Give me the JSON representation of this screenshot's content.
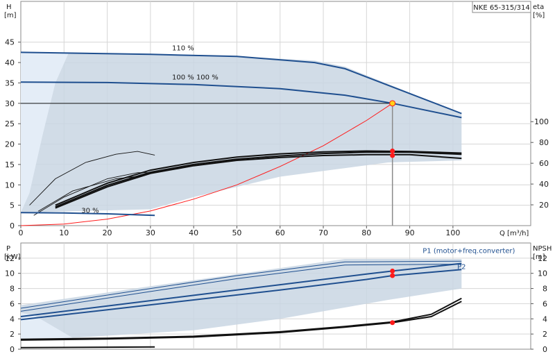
{
  "colors": {
    "blue": "#1f4f8f",
    "band": "#c9d6e3",
    "band_light": "#e4edf7",
    "grid": "#d6d6d6",
    "black": "#111111",
    "red": "#ff1a1a",
    "duty_point_fill": "#ffd21a"
  },
  "chart_data": [
    {
      "type": "line",
      "title": "NKE 65-315/314",
      "xlabel": "Q [m³/h]",
      "ylabel_left": [
        "H",
        "[m]"
      ],
      "ylabel_right": [
        "eta",
        "[%]"
      ],
      "x_ticks": [
        0,
        10,
        20,
        30,
        40,
        50,
        60,
        70,
        80,
        90,
        100
      ],
      "y_ticks_left": [
        0,
        5,
        10,
        15,
        20,
        25,
        30,
        35,
        40,
        45
      ],
      "y_ticks_right": [
        20,
        40,
        60,
        80,
        100
      ],
      "xlim": [
        0,
        118
      ],
      "ylim_left": [
        0,
        55
      ],
      "grid": true,
      "duty_point": {
        "q": 86,
        "h": 30
      },
      "region": {
        "upper": [
          [
            0,
            42.5
          ],
          [
            12,
            42.3
          ],
          [
            30,
            42
          ],
          [
            50,
            41.5
          ],
          [
            68,
            40.5
          ],
          [
            75,
            39
          ],
          [
            102,
            27.5
          ]
        ],
        "lower": [
          [
            102,
            16
          ],
          [
            85,
            15.5
          ],
          [
            60,
            12
          ],
          [
            40,
            7
          ],
          [
            30,
            4
          ],
          [
            0,
            3.2
          ]
        ]
      },
      "light_region": [
        [
          0,
          42.5
        ],
        [
          11,
          42.2
        ],
        [
          8,
          35
        ],
        [
          5,
          22
        ],
        [
          2,
          8
        ],
        [
          0,
          3.2
        ]
      ],
      "series": [
        {
          "name": "110 %",
          "label": "110 %",
          "label_at": [
            35,
            42.5
          ],
          "points": [
            [
              0,
              42.5
            ],
            [
              30,
              42
            ],
            [
              50,
              41.5
            ],
            [
              68,
              40
            ],
            [
              75,
              38.5
            ],
            [
              102,
              27.5
            ]
          ]
        },
        {
          "name": "100 %",
          "label": "100 %    100 %",
          "label_at": [
            35,
            35.3
          ],
          "points": [
            [
              0,
              35.2
            ],
            [
              20,
              35.1
            ],
            [
              40,
              34.6
            ],
            [
              60,
              33.6
            ],
            [
              75,
              32
            ],
            [
              86,
              30
            ],
            [
              102,
              26.5
            ]
          ]
        },
        {
          "name": "30 %",
          "label": "30 %",
          "label_at": [
            14,
            2.6
          ],
          "points": [
            [
              0,
              3.2
            ],
            [
              10,
              3.1
            ],
            [
              20,
              2.9
            ],
            [
              31,
              2.5
            ]
          ]
        }
      ],
      "system_curve": [
        [
          0,
          0
        ],
        [
          10,
          0.4
        ],
        [
          20,
          1.6
        ],
        [
          30,
          3.6
        ],
        [
          40,
          6.5
        ],
        [
          50,
          10
        ],
        [
          60,
          14.5
        ],
        [
          70,
          19.6
        ],
        [
          80,
          25.8
        ],
        [
          86,
          30
        ]
      ],
      "duty_vertical": {
        "q": 86,
        "h_top": 30
      },
      "efficiency_curves": [
        {
          "points": [
            [
              8,
              4.3
            ],
            [
              20,
              9.5
            ],
            [
              30,
              12.8
            ],
            [
              40,
              14.7
            ],
            [
              50,
              16
            ],
            [
              60,
              16.7
            ],
            [
              70,
              17.2
            ],
            [
              80,
              17.4
            ],
            [
              90,
              17.4
            ],
            [
              102,
              16.5
            ]
          ]
        },
        {
          "points": [
            [
              8,
              4.6
            ],
            [
              20,
              9.9
            ],
            [
              30,
              13.1
            ],
            [
              40,
              15
            ],
            [
              50,
              16.3
            ],
            [
              60,
              17.1
            ],
            [
              70,
              17.7
            ],
            [
              80,
              18
            ],
            [
              90,
              18
            ],
            [
              102,
              17.5
            ]
          ]
        },
        {
          "points": [
            [
              8,
              5
            ],
            [
              20,
              10.4
            ],
            [
              30,
              13.6
            ],
            [
              40,
              15.5
            ],
            [
              50,
              16.8
            ],
            [
              60,
              17.6
            ],
            [
              70,
              18.1
            ],
            [
              80,
              18.3
            ],
            [
              90,
              18.2
            ],
            [
              102,
              17.8
            ]
          ]
        },
        {
          "points": [
            [
              3,
              2.5
            ],
            [
              10,
              7
            ],
            [
              20,
              11.5
            ],
            [
              27,
              13
            ],
            [
              31,
              13
            ]
          ],
          "thin": true
        },
        {
          "points": [
            [
              2,
              5
            ],
            [
              8,
              11.5
            ],
            [
              15,
              15.5
            ],
            [
              22,
              17.5
            ],
            [
              27,
              18.2
            ],
            [
              31,
              17.3
            ]
          ],
          "thin": true
        },
        {
          "points": [
            [
              4,
              3.5
            ],
            [
              12,
              8.5
            ],
            [
              22,
              11.5
            ],
            [
              28,
              12.2
            ]
          ],
          "thin": true
        }
      ],
      "markers": [
        [
          86,
          17.2
        ],
        [
          86,
          18.3
        ]
      ]
    },
    {
      "type": "line",
      "xlabel": "",
      "ylabel_left": [
        "P",
        "[kW]"
      ],
      "ylabel_right": [
        "NPSH",
        "[m]"
      ],
      "y_ticks_left": [
        0,
        2,
        4,
        6,
        8,
        10,
        12
      ],
      "y_ticks_right": [
        0,
        2,
        4,
        6,
        8,
        10,
        12
      ],
      "xlim": [
        0,
        118
      ],
      "ylim_left": [
        0,
        14
      ],
      "grid": true,
      "region": {
        "upper": [
          [
            0,
            5.8
          ],
          [
            30,
            8.3
          ],
          [
            50,
            9.9
          ],
          [
            75,
            11.9
          ],
          [
            102,
            11.9
          ]
        ],
        "lower": [
          [
            102,
            8
          ],
          [
            85,
            6.5
          ],
          [
            60,
            4
          ],
          [
            40,
            2.5
          ],
          [
            12,
            1.5
          ],
          [
            0,
            1.4
          ]
        ]
      },
      "light_region": [
        [
          0,
          1.4
        ],
        [
          12,
          1.5
        ],
        [
          6,
          3.5
        ],
        [
          3,
          4.5
        ],
        [
          0,
          4.8
        ]
      ],
      "series": [
        {
          "name": "P1 (motor+freq.converter)",
          "label": "P1 (motor+freq.converter)",
          "label_at": [
            93,
            12.4
          ],
          "points": [
            [
              0,
              4.3
            ],
            [
              20,
              5.7
            ],
            [
              40,
              7.1
            ],
            [
              60,
              8.5
            ],
            [
              80,
              9.9
            ],
            [
              86,
              10.3
            ],
            [
              102,
              11.3
            ]
          ]
        },
        {
          "name": "P2",
          "label": "P2",
          "label_at": [
            101,
            10.3
          ],
          "points": [
            [
              0,
              3.9
            ],
            [
              20,
              5.2
            ],
            [
              40,
              6.5
            ],
            [
              60,
              7.8
            ],
            [
              80,
              9.2
            ],
            [
              86,
              9.7
            ],
            [
              102,
              10.5
            ]
          ]
        },
        {
          "name": "upper envelope",
          "points": [
            [
              0,
              5.4
            ],
            [
              30,
              8
            ],
            [
              50,
              9.7
            ],
            [
              75,
              11.5
            ],
            [
              102,
              11.6
            ]
          ],
          "thin": true
        },
        {
          "name": "upper envelope 2",
          "points": [
            [
              0,
              5
            ],
            [
              30,
              7.6
            ],
            [
              50,
              9.3
            ],
            [
              75,
              11.1
            ],
            [
              102,
              11.2
            ]
          ],
          "thin": true
        }
      ],
      "npsh_curves": [
        {
          "points": [
            [
              0,
              1.2
            ],
            [
              20,
              1.35
            ],
            [
              40,
              1.6
            ],
            [
              60,
              2.2
            ],
            [
              75,
              2.9
            ],
            [
              86,
              3.5
            ],
            [
              95,
              4.3
            ],
            [
              102,
              6.3
            ]
          ]
        },
        {
          "points": [
            [
              0,
              1.3
            ],
            [
              20,
              1.45
            ],
            [
              40,
              1.7
            ],
            [
              60,
              2.3
            ],
            [
              75,
              3
            ],
            [
              86,
              3.6
            ],
            [
              95,
              4.6
            ],
            [
              102,
              6.7
            ]
          ]
        },
        {
          "points": [
            [
              0,
              0.2
            ],
            [
              31,
              0.3
            ]
          ]
        }
      ],
      "markers": [
        [
          86,
          9.7
        ],
        [
          86,
          10.3
        ],
        [
          86,
          3.5
        ]
      ]
    }
  ]
}
